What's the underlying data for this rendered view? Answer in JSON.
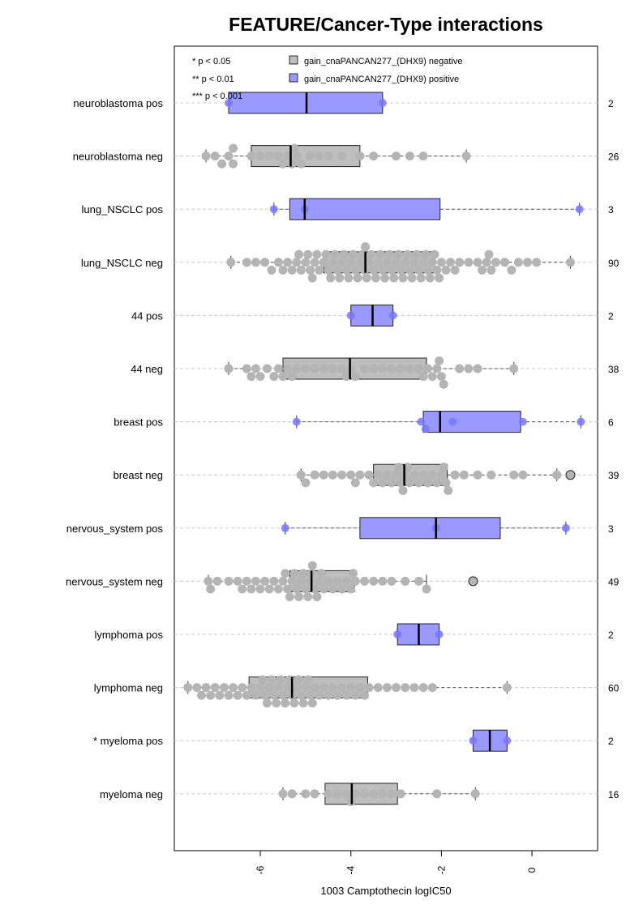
{
  "chart_data": {
    "type": "box",
    "title": "FEATURE/Cancer-Type interactions",
    "xlabel": "1003 Camptothecin logIC50",
    "xlim": [
      -7.9,
      1.45
    ],
    "xticks": [
      -6,
      -4,
      -2,
      0
    ],
    "xtick_labels": [
      "-6",
      "-4",
      "-2",
      "0"
    ],
    "grid": "horizontal dashed",
    "significance_legend": [
      "* p < 0.05",
      "** p < 0.01",
      "*** p < 0.001"
    ],
    "legend": [
      {
        "label": "gain_cnaPANCAN277_(DHX9) negative",
        "color": "#BEBEBE"
      },
      {
        "label": "gain_cnaPANCAN277_(DHX9) positive",
        "color": "#9999FF"
      }
    ],
    "colors": {
      "negative_box": "#BEBEBE",
      "negative_point": "#B4B4B4",
      "positive_box": "#9999FF",
      "positive_point": "#7777FF",
      "grid": "#C8C8C8"
    },
    "groups": [
      {
        "label": "neuroblastoma pos",
        "n": "2",
        "type": "pos",
        "q1": -6.7,
        "median": -4.98,
        "q3": -3.3,
        "wlo": -6.7,
        "whi": -3.3,
        "points": [
          -6.7,
          -3.3
        ],
        "outliers": []
      },
      {
        "label": "neuroblastoma neg",
        "n": "26",
        "type": "neg",
        "q1": -6.2,
        "median": -5.33,
        "q3": -3.8,
        "wlo": -7.2,
        "whi": -1.45,
        "points": [
          -7.2,
          -7.0,
          -6.85,
          -6.7,
          -6.6,
          -6.6,
          -6.2,
          -6.0,
          -5.8,
          -5.6,
          -5.5,
          -5.4,
          -5.3,
          -5.25,
          -5.2,
          -5.1,
          -4.9,
          -4.7,
          -4.5,
          -4.2,
          -3.8,
          -3.5,
          -3.0,
          -2.7,
          -2.4,
          -1.45
        ],
        "outliers": []
      },
      {
        "label": "lung_NSCLC pos",
        "n": "3",
        "type": "pos",
        "q1": -5.35,
        "median": -5.02,
        "q3": -2.03,
        "wlo": -5.7,
        "whi": 1.05,
        "points": [
          -5.7,
          -5.02,
          1.05
        ],
        "outliers": []
      },
      {
        "label": "lung_NSCLC neg",
        "n": "90",
        "type": "neg",
        "q1": -4.6,
        "median": -3.68,
        "q3": -2.15,
        "wlo": -6.65,
        "whi": 0.85,
        "points": [
          -6.65,
          -6.3,
          -6.1,
          -5.9,
          -5.75,
          -5.6,
          -5.5,
          -5.4,
          -5.3,
          -5.2,
          -5.15,
          -5.1,
          -5.0,
          -4.95,
          -4.9,
          -4.85,
          -4.8,
          -4.75,
          -4.7,
          -4.6,
          -4.55,
          -4.5,
          -4.45,
          -4.4,
          -4.35,
          -4.3,
          -4.25,
          -4.2,
          -4.15,
          -4.1,
          -4.05,
          -4.0,
          -3.95,
          -3.9,
          -3.85,
          -3.8,
          -3.75,
          -3.7,
          -3.68,
          -3.65,
          -3.6,
          -3.55,
          -3.5,
          -3.45,
          -3.4,
          -3.35,
          -3.3,
          -3.25,
          -3.2,
          -3.15,
          -3.1,
          -3.05,
          -3.0,
          -2.95,
          -2.9,
          -2.85,
          -2.8,
          -2.75,
          -2.7,
          -2.65,
          -2.6,
          -2.55,
          -2.5,
          -2.45,
          -2.4,
          -2.35,
          -2.3,
          -2.25,
          -2.2,
          -2.15,
          -2.1,
          -2.05,
          -2.0,
          -1.9,
          -1.8,
          -1.7,
          -1.6,
          -1.4,
          -1.2,
          -1.1,
          -1.0,
          -0.95,
          -0.9,
          -0.8,
          -0.6,
          -0.45,
          -0.3,
          -0.1,
          0.1,
          0.85
        ],
        "outliers": []
      },
      {
        "label": "44 pos",
        "n": "2",
        "type": "pos",
        "q1": -4.0,
        "median": -3.52,
        "q3": -3.07,
        "wlo": -4.0,
        "whi": -3.07,
        "points": [
          -4.0,
          -3.07
        ],
        "outliers": []
      },
      {
        "label": "44 neg",
        "n": "38",
        "type": "neg",
        "q1": -5.5,
        "median": -4.02,
        "q3": -2.33,
        "wlo": -6.7,
        "whi": -0.4,
        "points": [
          -6.7,
          -6.3,
          -6.2,
          -6.1,
          -6.0,
          -5.85,
          -5.7,
          -5.6,
          -5.5,
          -5.4,
          -5.3,
          -5.2,
          -5.0,
          -4.8,
          -4.6,
          -4.4,
          -4.2,
          -4.1,
          -4.0,
          -3.9,
          -3.7,
          -3.5,
          -3.3,
          -3.1,
          -2.9,
          -2.7,
          -2.5,
          -2.4,
          -2.3,
          -2.2,
          -2.1,
          -2.05,
          -2.0,
          -1.95,
          -1.6,
          -1.4,
          -1.2,
          -0.4
        ],
        "outliers": []
      },
      {
        "label": "breast pos",
        "n": "6",
        "type": "pos",
        "q1": -2.4,
        "median": -2.03,
        "q3": -0.25,
        "wlo": -5.2,
        "whi": 1.08,
        "points": [
          -5.2,
          -2.45,
          -2.35,
          -1.75,
          -0.2,
          1.08
        ],
        "outliers": []
      },
      {
        "label": "breast neg",
        "n": "39",
        "type": "neg",
        "q1": -3.5,
        "median": -2.82,
        "q3": -1.87,
        "wlo": -5.1,
        "whi": 0.55,
        "points": [
          -5.1,
          -5.0,
          -4.8,
          -4.6,
          -4.4,
          -4.2,
          -4.0,
          -3.9,
          -3.8,
          -3.6,
          -3.5,
          -3.4,
          -3.3,
          -3.2,
          -3.1,
          -3.0,
          -2.95,
          -2.9,
          -2.85,
          -2.82,
          -2.75,
          -2.7,
          -2.6,
          -2.5,
          -2.4,
          -2.3,
          -2.2,
          -2.1,
          -2.0,
          -1.95,
          -1.9,
          -1.85,
          -1.7,
          -1.5,
          -1.2,
          -0.9,
          -0.4,
          -0.2,
          0.55
        ],
        "outliers": [
          0.85
        ]
      },
      {
        "label": "nervous_system pos",
        "n": "3",
        "type": "pos",
        "q1": -3.8,
        "median": -2.12,
        "q3": -0.7,
        "wlo": -5.45,
        "whi": 0.75,
        "points": [
          -5.45,
          -2.12,
          0.75
        ],
        "outliers": []
      },
      {
        "label": "nervous_system neg",
        "n": "49",
        "type": "neg",
        "q1": -5.35,
        "median": -4.87,
        "q3": -3.92,
        "wlo": -7.15,
        "whi": -2.33,
        "points": [
          -7.15,
          -7.1,
          -6.95,
          -6.7,
          -6.5,
          -6.4,
          -6.3,
          -6.2,
          -6.1,
          -6.0,
          -5.9,
          -5.8,
          -5.7,
          -5.6,
          -5.5,
          -5.45,
          -5.4,
          -5.35,
          -5.3,
          -5.25,
          -5.2,
          -5.15,
          -5.1,
          -5.05,
          -5.0,
          -4.95,
          -4.9,
          -4.87,
          -4.85,
          -4.8,
          -4.75,
          -4.7,
          -4.65,
          -4.6,
          -4.5,
          -4.4,
          -4.3,
          -4.2,
          -4.1,
          -4.0,
          -3.95,
          -3.9,
          -3.7,
          -3.5,
          -3.3,
          -3.1,
          -2.8,
          -2.5,
          -2.33
        ],
        "outliers": [
          -1.3
        ]
      },
      {
        "label": "lymphoma pos",
        "n": "2",
        "type": "pos",
        "q1": -2.97,
        "median": -2.5,
        "q3": -2.05,
        "wlo": -2.97,
        "whi": -2.05,
        "points": [
          -2.97,
          -2.05
        ],
        "outliers": []
      },
      {
        "label": "lymphoma neg",
        "n": "60",
        "type": "neg",
        "q1": -6.25,
        "median": -5.3,
        "q3": -3.63,
        "wlo": -7.6,
        "whi": -0.55,
        "points": [
          -7.6,
          -7.4,
          -7.3,
          -7.2,
          -7.1,
          -7.0,
          -6.9,
          -6.8,
          -6.7,
          -6.6,
          -6.5,
          -6.4,
          -6.3,
          -6.2,
          -6.1,
          -6.0,
          -5.95,
          -5.9,
          -5.85,
          -5.8,
          -5.75,
          -5.7,
          -5.65,
          -5.6,
          -5.55,
          -5.5,
          -5.45,
          -5.4,
          -5.35,
          -5.3,
          -5.25,
          -5.2,
          -5.15,
          -5.1,
          -5.05,
          -5.0,
          -4.95,
          -4.9,
          -4.85,
          -4.8,
          -4.7,
          -4.6,
          -4.5,
          -4.4,
          -4.3,
          -4.2,
          -4.1,
          -4.0,
          -3.9,
          -3.8,
          -3.7,
          -3.6,
          -3.4,
          -3.2,
          -3.0,
          -2.8,
          -2.6,
          -2.4,
          -2.2,
          -0.55
        ],
        "outliers": []
      },
      {
        "label": "* myeloma pos",
        "n": "2",
        "type": "pos",
        "q1": -1.3,
        "median": -0.93,
        "q3": -0.55,
        "wlo": -1.3,
        "whi": -0.55,
        "points": [
          -1.3,
          -0.55
        ],
        "outliers": []
      },
      {
        "label": "myeloma neg",
        "n": "16",
        "type": "neg",
        "q1": -4.57,
        "median": -3.98,
        "q3": -2.97,
        "wlo": -5.5,
        "whi": -1.25,
        "points": [
          -5.5,
          -5.3,
          -5.0,
          -4.8,
          -4.5,
          -4.3,
          -4.1,
          -4.0,
          -3.9,
          -3.7,
          -3.5,
          -3.3,
          -3.1,
          -2.9,
          -2.1,
          -1.25
        ],
        "outliers": []
      }
    ]
  }
}
